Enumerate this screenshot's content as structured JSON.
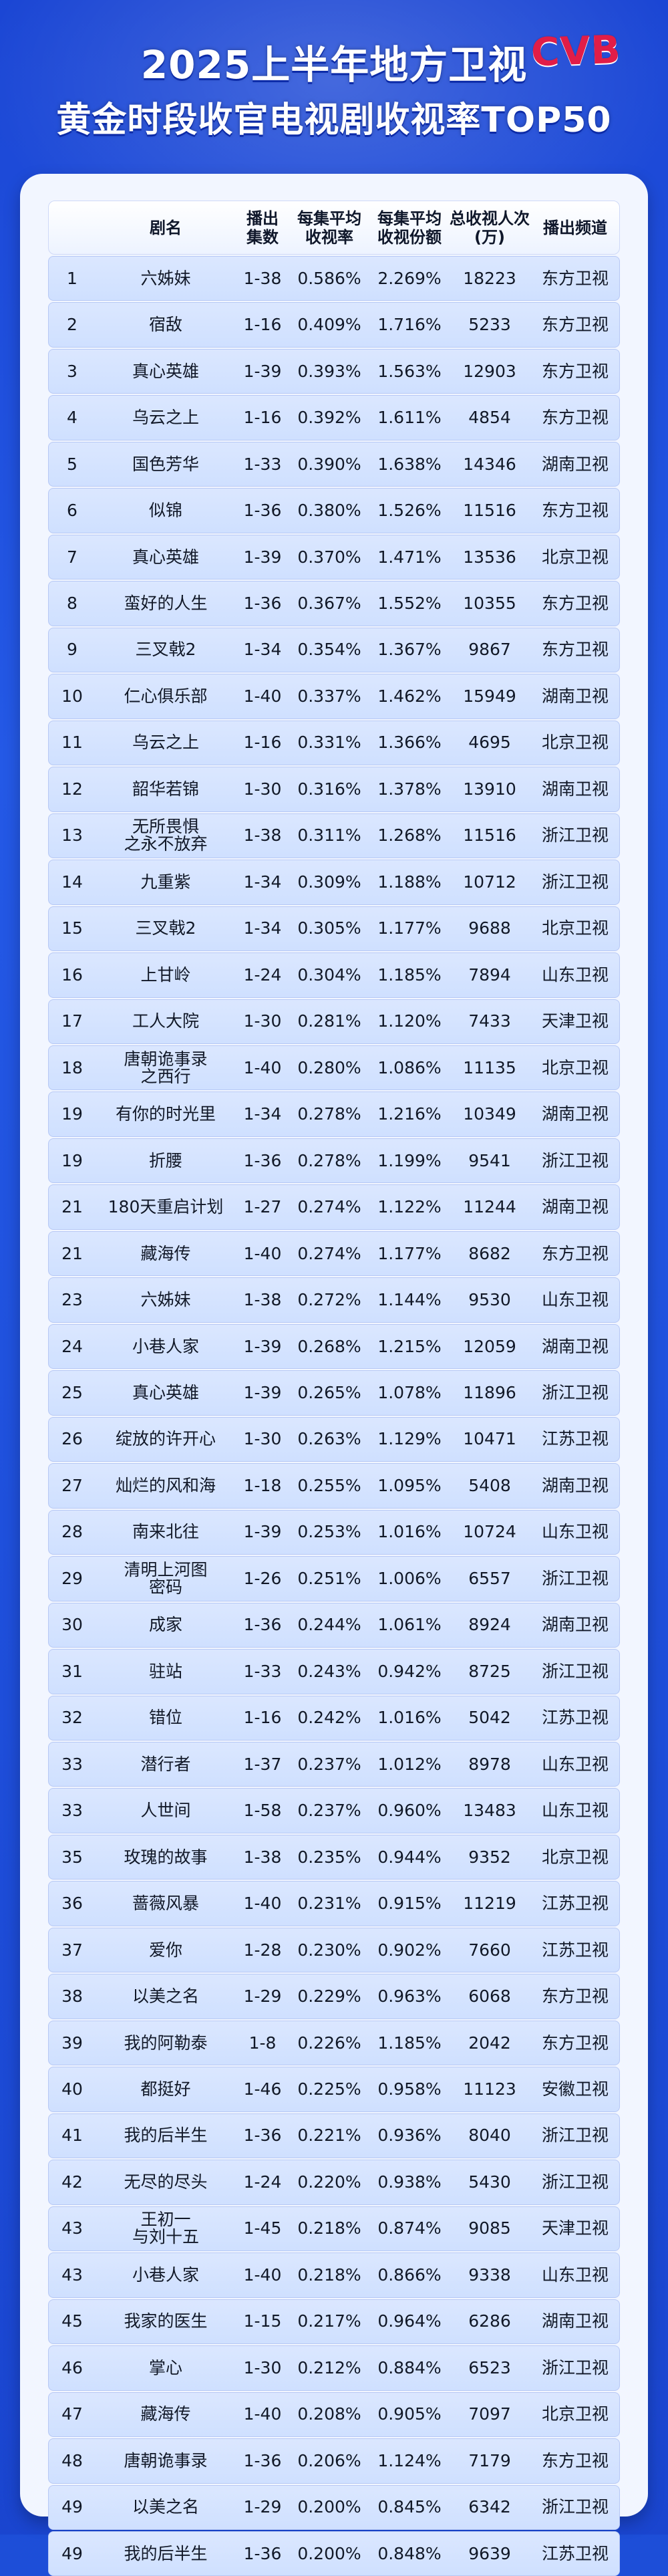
{
  "header": {
    "title_line1": "2025上半年地方卫视",
    "title_line2": "黄金时段收官电视剧收视率TOP50",
    "logo_text": "CVB"
  },
  "table": {
    "headers": [
      "",
      "剧名",
      "播出\n集数",
      "每集平均\n收视率",
      "每集平均\n收视份额",
      "总收视人次\n(万)",
      "播出频道"
    ],
    "rows": [
      [
        "1",
        "六姊妹",
        "1-38",
        "0.586%",
        "2.269%",
        "18223",
        "东方卫视"
      ],
      [
        "2",
        "宿敌",
        "1-16",
        "0.409%",
        "1.716%",
        "5233",
        "东方卫视"
      ],
      [
        "3",
        "真心英雄",
        "1-39",
        "0.393%",
        "1.563%",
        "12903",
        "东方卫视"
      ],
      [
        "4",
        "乌云之上",
        "1-16",
        "0.392%",
        "1.611%",
        "4854",
        "东方卫视"
      ],
      [
        "5",
        "国色芳华",
        "1-33",
        "0.390%",
        "1.638%",
        "14346",
        "湖南卫视"
      ],
      [
        "6",
        "似锦",
        "1-36",
        "0.380%",
        "1.526%",
        "11516",
        "东方卫视"
      ],
      [
        "7",
        "真心英雄",
        "1-39",
        "0.370%",
        "1.471%",
        "13536",
        "北京卫视"
      ],
      [
        "8",
        "蛮好的人生",
        "1-36",
        "0.367%",
        "1.552%",
        "10355",
        "东方卫视"
      ],
      [
        "9",
        "三叉戟2",
        "1-34",
        "0.354%",
        "1.367%",
        "9867",
        "东方卫视"
      ],
      [
        "10",
        "仁心俱乐部",
        "1-40",
        "0.337%",
        "1.462%",
        "15949",
        "湖南卫视"
      ],
      [
        "11",
        "乌云之上",
        "1-16",
        "0.331%",
        "1.366%",
        "4695",
        "北京卫视"
      ],
      [
        "12",
        "韶华若锦",
        "1-30",
        "0.316%",
        "1.378%",
        "13910",
        "湖南卫视"
      ],
      [
        "13",
        "无所畏惧\n之永不放弃",
        "1-38",
        "0.311%",
        "1.268%",
        "11516",
        "浙江卫视"
      ],
      [
        "14",
        "九重紫",
        "1-34",
        "0.309%",
        "1.188%",
        "10712",
        "浙江卫视"
      ],
      [
        "15",
        "三叉戟2",
        "1-34",
        "0.305%",
        "1.177%",
        "9688",
        "北京卫视"
      ],
      [
        "16",
        "上甘岭",
        "1-24",
        "0.304%",
        "1.185%",
        "7894",
        "山东卫视"
      ],
      [
        "17",
        "工人大院",
        "1-30",
        "0.281%",
        "1.120%",
        "7433",
        "天津卫视"
      ],
      [
        "18",
        "唐朝诡事录\n之西行",
        "1-40",
        "0.280%",
        "1.086%",
        "11135",
        "北京卫视"
      ],
      [
        "19",
        "有你的时光里",
        "1-34",
        "0.278%",
        "1.216%",
        "10349",
        "湖南卫视"
      ],
      [
        "19",
        "折腰",
        "1-36",
        "0.278%",
        "1.199%",
        "9541",
        "浙江卫视"
      ],
      [
        "21",
        "180天重启计划",
        "1-27",
        "0.274%",
        "1.122%",
        "11244",
        "湖南卫视"
      ],
      [
        "21",
        "藏海传",
        "1-40",
        "0.274%",
        "1.177%",
        "8682",
        "东方卫视"
      ],
      [
        "23",
        "六姊妹",
        "1-38",
        "0.272%",
        "1.144%",
        "9530",
        "山东卫视"
      ],
      [
        "24",
        "小巷人家",
        "1-39",
        "0.268%",
        "1.215%",
        "12059",
        "湖南卫视"
      ],
      [
        "25",
        "真心英雄",
        "1-39",
        "0.265%",
        "1.078%",
        "11896",
        "浙江卫视"
      ],
      [
        "26",
        "绽放的许开心",
        "1-30",
        "0.263%",
        "1.129%",
        "10471",
        "江苏卫视"
      ],
      [
        "27",
        "灿烂的风和海",
        "1-18",
        "0.255%",
        "1.095%",
        "5408",
        "湖南卫视"
      ],
      [
        "28",
        "南来北往",
        "1-39",
        "0.253%",
        "1.016%",
        "10724",
        "山东卫视"
      ],
      [
        "29",
        "清明上河图\n密码",
        "1-26",
        "0.251%",
        "1.006%",
        "6557",
        "浙江卫视"
      ],
      [
        "30",
        "成家",
        "1-36",
        "0.244%",
        "1.061%",
        "8924",
        "湖南卫视"
      ],
      [
        "31",
        "驻站",
        "1-33",
        "0.243%",
        "0.942%",
        "8725",
        "浙江卫视"
      ],
      [
        "32",
        "错位",
        "1-16",
        "0.242%",
        "1.016%",
        "5042",
        "江苏卫视"
      ],
      [
        "33",
        "潜行者",
        "1-37",
        "0.237%",
        "1.012%",
        "8978",
        "山东卫视"
      ],
      [
        "33",
        "人世间",
        "1-58",
        "0.237%",
        "0.960%",
        "13483",
        "山东卫视"
      ],
      [
        "35",
        "玫瑰的故事",
        "1-38",
        "0.235%",
        "0.944%",
        "9352",
        "北京卫视"
      ],
      [
        "36",
        "蔷薇风暴",
        "1-40",
        "0.231%",
        "0.915%",
        "11219",
        "江苏卫视"
      ],
      [
        "37",
        "爱你",
        "1-28",
        "0.230%",
        "0.902%",
        "7660",
        "江苏卫视"
      ],
      [
        "38",
        "以美之名",
        "1-29",
        "0.229%",
        "0.963%",
        "6068",
        "东方卫视"
      ],
      [
        "39",
        "我的阿勒泰",
        "1-8",
        "0.226%",
        "1.185%",
        "2042",
        "东方卫视"
      ],
      [
        "40",
        "都挺好",
        "1-46",
        "0.225%",
        "0.958%",
        "11123",
        "安徽卫视"
      ],
      [
        "41",
        "我的后半生",
        "1-36",
        "0.221%",
        "0.936%",
        "8040",
        "浙江卫视"
      ],
      [
        "42",
        "无尽的尽头",
        "1-24",
        "0.220%",
        "0.938%",
        "5430",
        "浙江卫视"
      ],
      [
        "43",
        "王初一\n与刘十五",
        "1-45",
        "0.218%",
        "0.874%",
        "9085",
        "天津卫视"
      ],
      [
        "43",
        "小巷人家",
        "1-40",
        "0.218%",
        "0.866%",
        "9338",
        "山东卫视"
      ],
      [
        "45",
        "我家的医生",
        "1-15",
        "0.217%",
        "0.964%",
        "6286",
        "湖南卫视"
      ],
      [
        "46",
        "掌心",
        "1-30",
        "0.212%",
        "0.884%",
        "6523",
        "浙江卫视"
      ],
      [
        "47",
        "藏海传",
        "1-40",
        "0.208%",
        "0.905%",
        "7097",
        "北京卫视"
      ],
      [
        "48",
        "唐朝诡事录",
        "1-36",
        "0.206%",
        "1.124%",
        "7179",
        "东方卫视"
      ],
      [
        "49",
        "以美之名",
        "1-29",
        "0.200%",
        "0.845%",
        "6342",
        "浙江卫视"
      ],
      [
        "49",
        "我的后半生",
        "1-36",
        "0.200%",
        "0.848%",
        "9639",
        "江苏卫视"
      ]
    ]
  }
}
